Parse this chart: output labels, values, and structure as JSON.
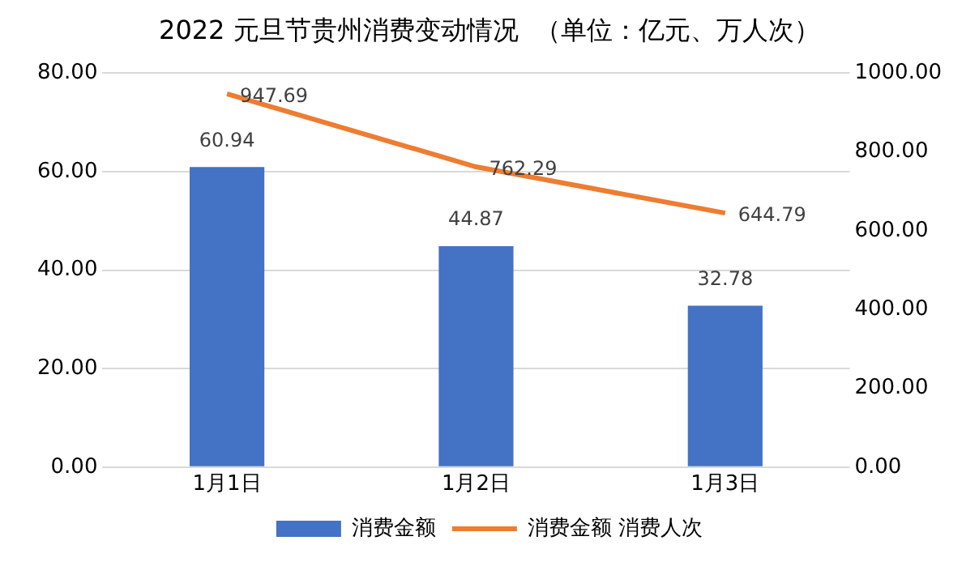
{
  "chart_data": {
    "type": "bar",
    "title": "2022 元旦节贵州消费变动情况  （单位：亿元、万人次）",
    "categories": [
      "1月1日",
      "1月2日",
      "1月3日"
    ],
    "series": [
      {
        "name": "消费金额",
        "color": "#4472c4",
        "values": [
          60.94,
          44.87,
          32.78
        ]
      },
      {
        "name": "消费金额 消费人次",
        "type": "line",
        "axis": "y2",
        "color": "#ed7d31",
        "values": [
          947.69,
          762.29,
          644.79
        ]
      }
    ],
    "ylim": [
      0,
      80
    ],
    "yticks": [
      {
        "value": 0,
        "label": "0.00"
      },
      {
        "value": 20,
        "label": "20.00"
      },
      {
        "value": 40,
        "label": "40.00"
      },
      {
        "value": 60,
        "label": "60.00"
      },
      {
        "value": 80,
        "label": "80.00"
      }
    ],
    "y2lim": [
      0,
      1000
    ],
    "y2ticks": [
      {
        "value": 0,
        "label": "0.00"
      },
      {
        "value": 200,
        "label": "200.00"
      },
      {
        "value": 400,
        "label": "400.00"
      },
      {
        "value": 600,
        "label": "600.00"
      },
      {
        "value": 800,
        "label": "800.00"
      },
      {
        "value": 1000,
        "label": "1000.00"
      }
    ],
    "grid": "y",
    "legend": "bottom",
    "data_labels": true,
    "marker": "none"
  }
}
